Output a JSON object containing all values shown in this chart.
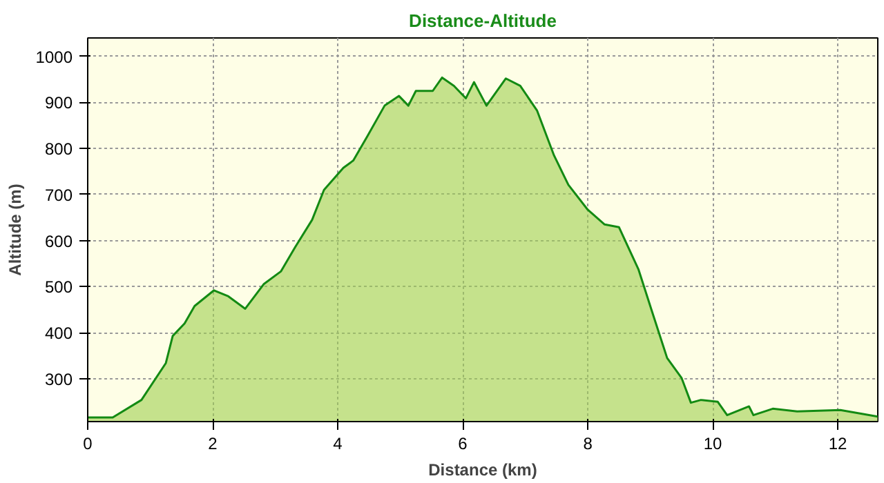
{
  "chart_data": {
    "type": "area",
    "title": "Distance-Altitude",
    "xlabel": "Distance (km)",
    "ylabel": "Altitude (m)",
    "x": [
      0,
      0.4,
      0.86,
      1.25,
      1.36,
      1.55,
      1.71,
      2.02,
      2.25,
      2.52,
      2.82,
      3.09,
      3.32,
      3.59,
      3.78,
      4.09,
      4.25,
      4.48,
      4.75,
      4.98,
      5.13,
      5.25,
      5.52,
      5.67,
      5.86,
      6.05,
      6.18,
      6.38,
      6.69,
      6.92,
      7.19,
      7.46,
      7.69,
      8.0,
      8.27,
      8.5,
      8.81,
      9.04,
      9.27,
      9.5,
      9.65,
      9.81,
      10.08,
      10.23,
      10.58,
      10.65,
      10.96,
      11.35,
      12.04,
      12.42,
      12.64
    ],
    "series": [
      {
        "color": "#138a13",
        "values": [
          216,
          216,
          254,
          334,
          393,
          420,
          458,
          492,
          479,
          452,
          506,
          533,
          586,
          645,
          710,
          758,
          774,
          828,
          893,
          914,
          893,
          925,
          925,
          954,
          936,
          909,
          944,
          893,
          952,
          936,
          882,
          785,
          721,
          667,
          635,
          629,
          538,
          441,
          345,
          302,
          248,
          254,
          250,
          221,
          240,
          221,
          235,
          229,
          232,
          223,
          218
        ]
      }
    ],
    "xlim": [
      0,
      12.64
    ],
    "ylim": [
      207,
      1040
    ],
    "xticks": [
      0,
      2,
      4,
      6,
      8,
      10,
      12
    ],
    "yticks": [
      300,
      400,
      500,
      600,
      700,
      800,
      900,
      1000
    ],
    "grid": true
  }
}
